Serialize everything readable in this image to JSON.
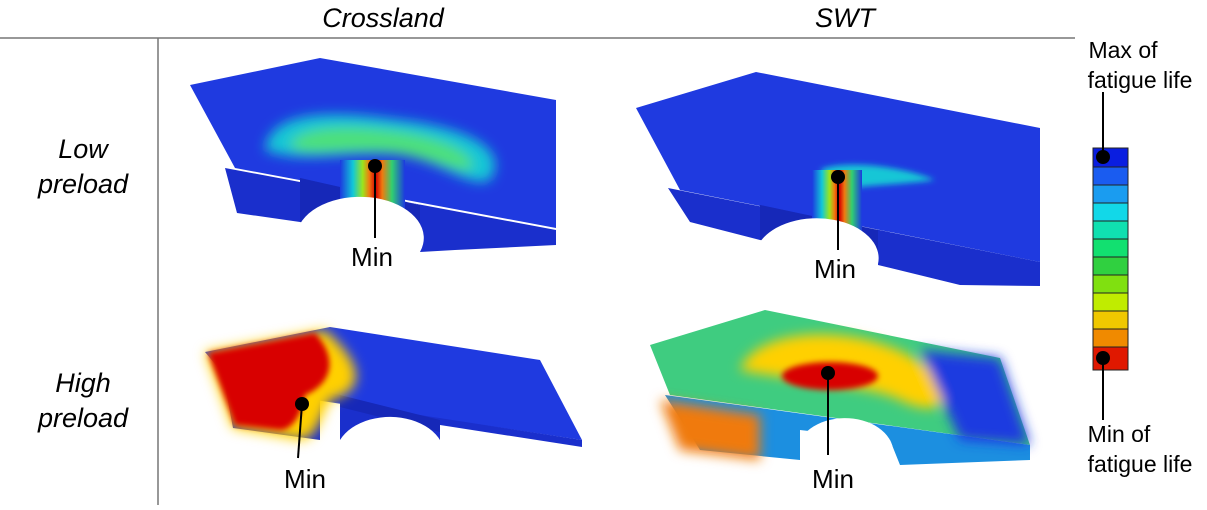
{
  "columns": [
    "Crossland",
    "SWT"
  ],
  "rows": [
    {
      "label_lines": [
        "Low",
        "preload"
      ]
    },
    {
      "label_lines": [
        "High",
        "preload"
      ]
    }
  ],
  "panels": [
    {
      "marker": "Min"
    },
    {
      "marker": "Min"
    },
    {
      "marker": "Min"
    },
    {
      "marker": "Min"
    }
  ],
  "legend": {
    "max_lines": [
      "Max of",
      "fatigue life"
    ],
    "min_lines": [
      "Min of",
      "fatigue life"
    ]
  }
}
